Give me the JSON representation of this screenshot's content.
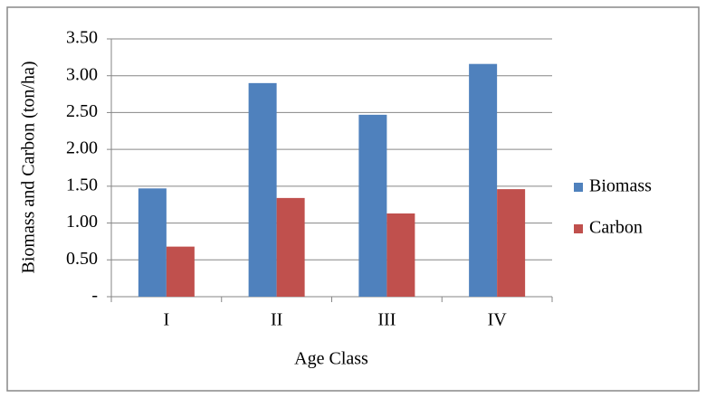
{
  "chart_data": {
    "type": "bar",
    "x_label": "Age Class",
    "y_label": "Biomass and Carbon (ton/ha)",
    "categories": [
      "I",
      "II",
      "III",
      "IV"
    ],
    "series": [
      {
        "name": "Biomass",
        "color": "#4f81bd",
        "values": [
          1.47,
          2.9,
          2.47,
          3.16
        ]
      },
      {
        "name": "Carbon",
        "color": "#c0504d",
        "values": [
          0.68,
          1.34,
          1.13,
          1.46
        ]
      }
    ],
    "ylim": [
      0,
      3.5
    ],
    "yticks": [
      {
        "value": 0,
        "label": "-"
      },
      {
        "value": 0.5,
        "label": "0.50"
      },
      {
        "value": 1,
        "label": "1.00"
      },
      {
        "value": 1.5,
        "label": "1.50"
      },
      {
        "value": 2,
        "label": "2.00"
      },
      {
        "value": 2.5,
        "label": "2.50"
      },
      {
        "value": 3,
        "label": "3.00"
      },
      {
        "value": 3.5,
        "label": "3.50"
      }
    ],
    "grid": true,
    "legend": "right"
  }
}
